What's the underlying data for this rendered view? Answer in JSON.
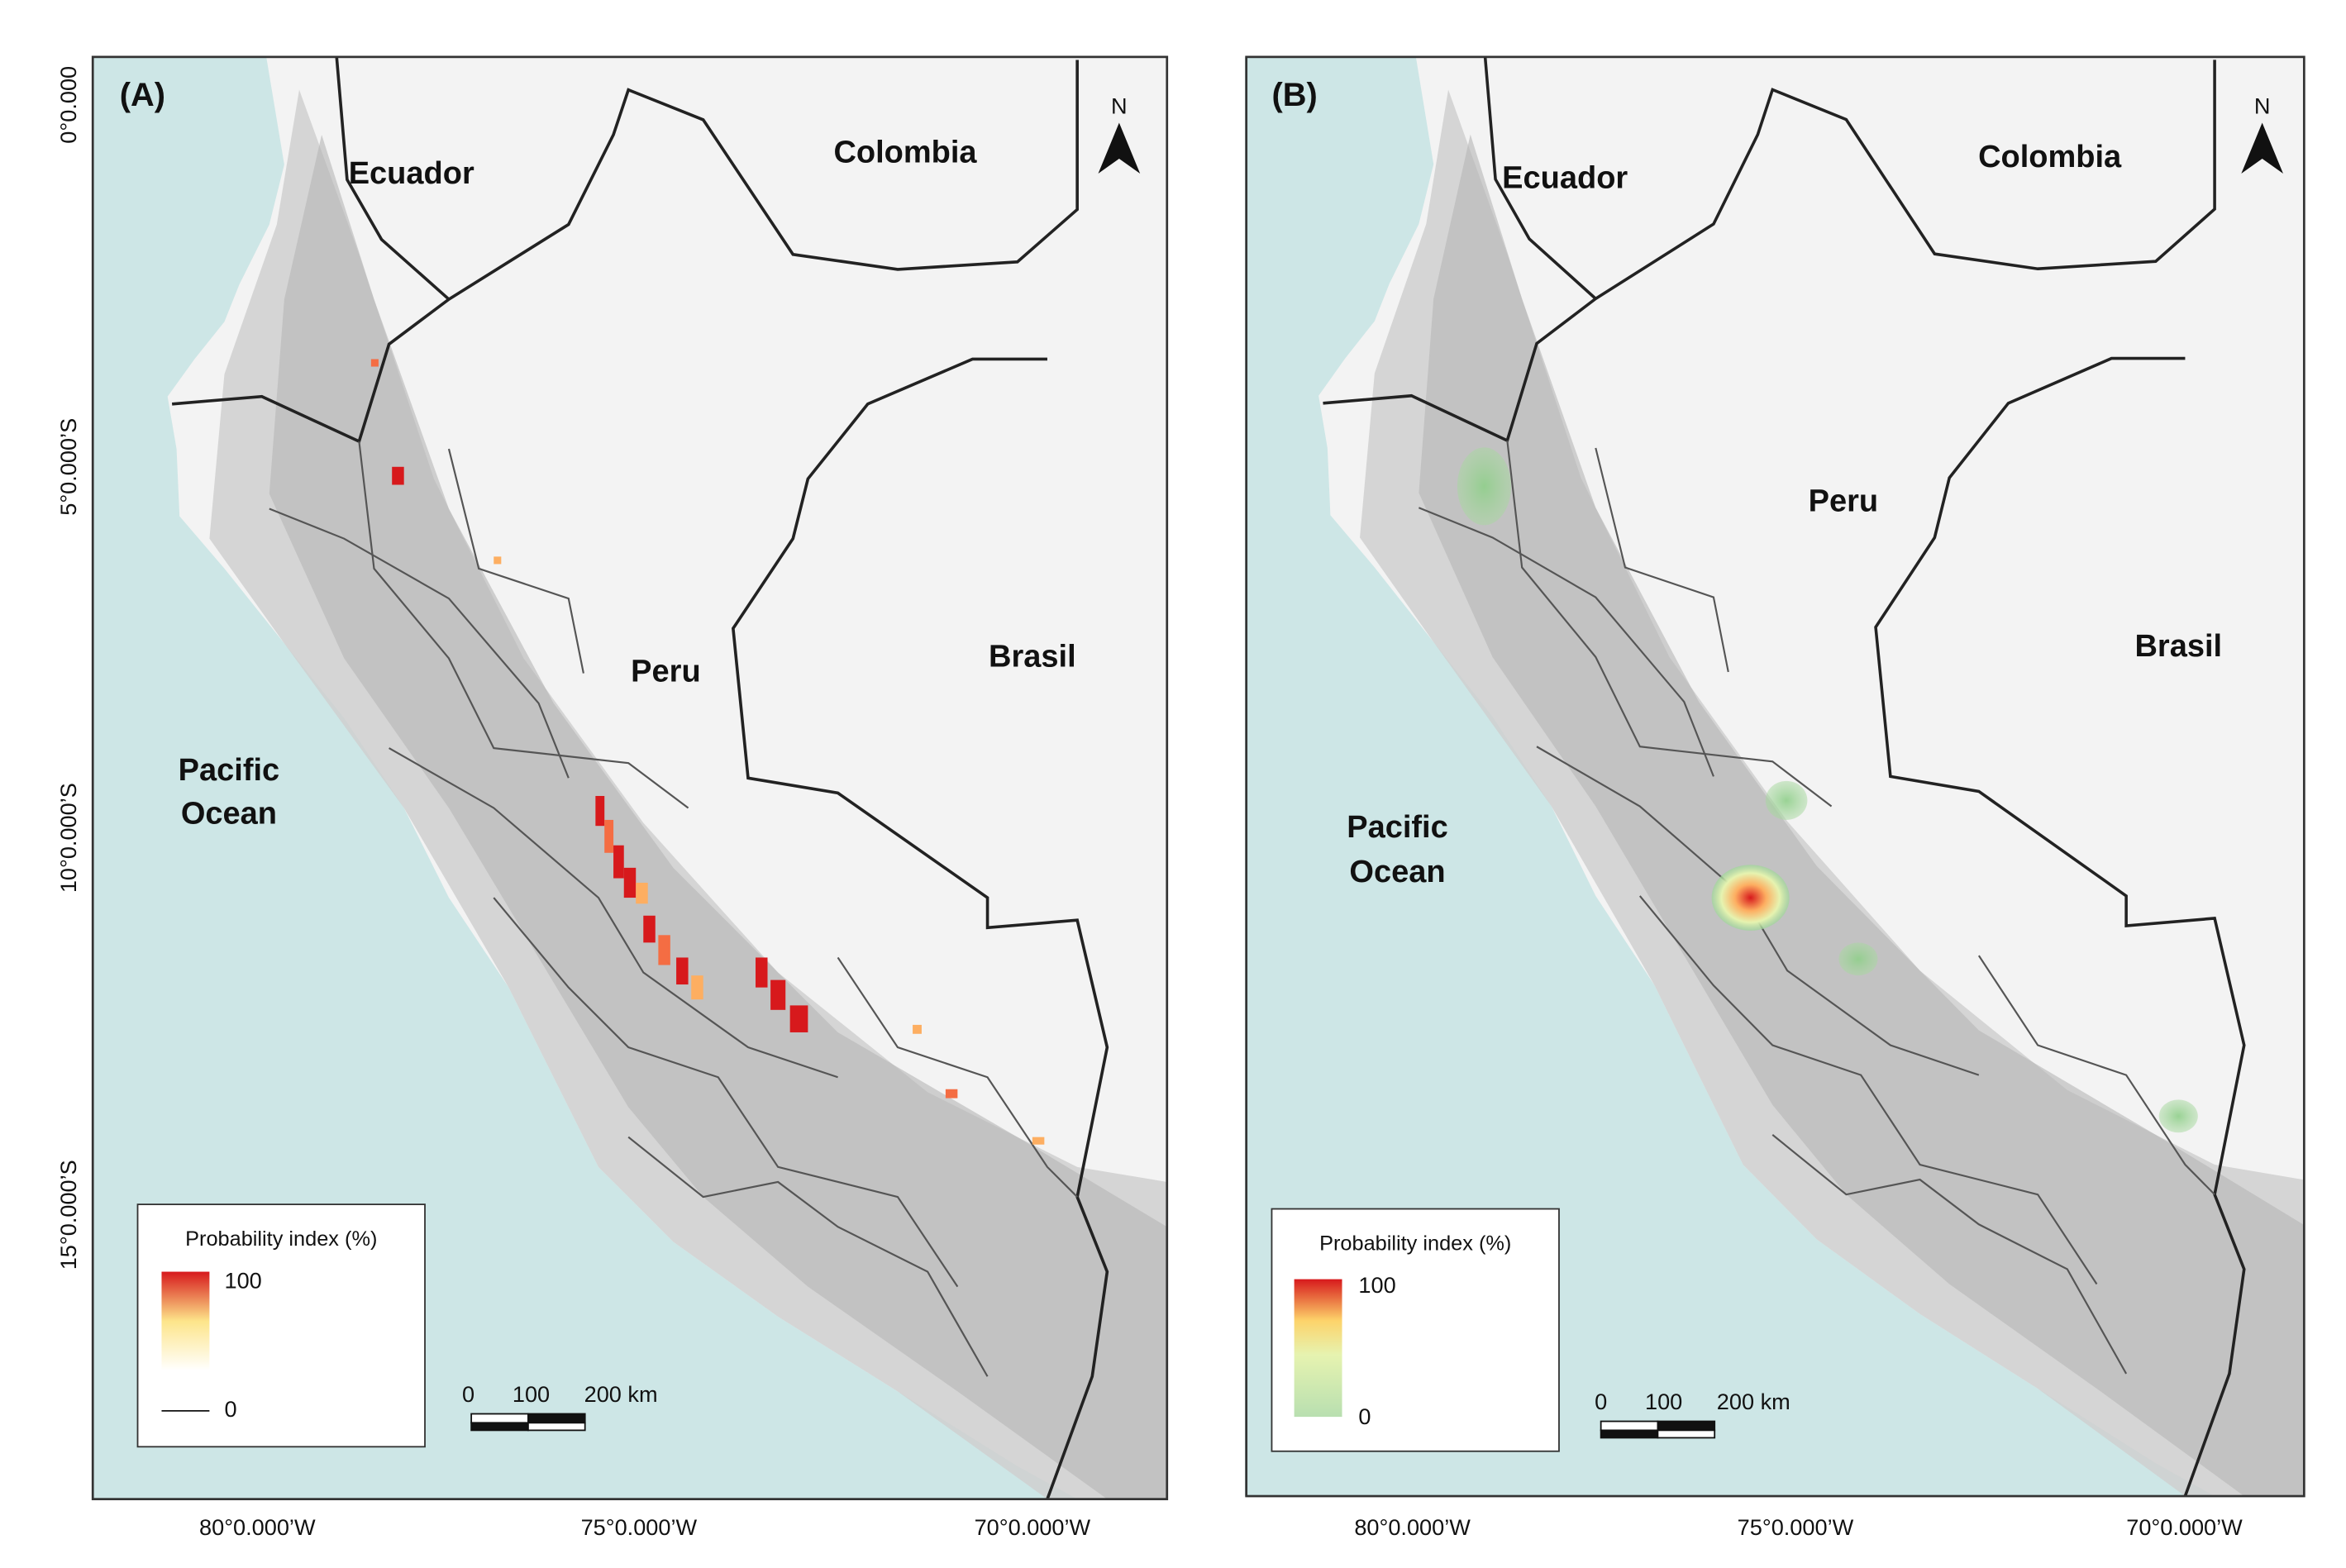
{
  "panels": [
    {
      "label": "(A)",
      "countries": {
        "ecuador": "Ecuador",
        "colombia": "Colombia",
        "peru": "Peru",
        "brasil": "Brasil"
      },
      "ocean": [
        "Pacific",
        "Ocean"
      ],
      "north": "N",
      "latitude_labels": [
        "0°0.000",
        "5°0.000’S",
        "10°0.000’S",
        "15°0.000’S"
      ],
      "longitude_labels": [
        "80°0.000’W",
        "75°0.000’W",
        "70°0.000’W"
      ],
      "legend": {
        "title": "Probability index (%)",
        "max": "100",
        "min": "0"
      },
      "scale_bar": [
        "0",
        "100",
        "200 km"
      ]
    },
    {
      "label": "(B)",
      "countries": {
        "ecuador": "Ecuador",
        "colombia": "Colombia",
        "peru": "Peru",
        "brasil": "Brasil"
      },
      "ocean": [
        "Pacific",
        "Ocean"
      ],
      "north": "N",
      "longitude_labels": [
        "80°0.000’W",
        "75°0.000’W",
        "70°0.000’W"
      ],
      "legend": {
        "title": "Probability index (%)",
        "max": "100",
        "min": "0"
      },
      "scale_bar": [
        "0",
        "100",
        "200 km"
      ]
    }
  ]
}
